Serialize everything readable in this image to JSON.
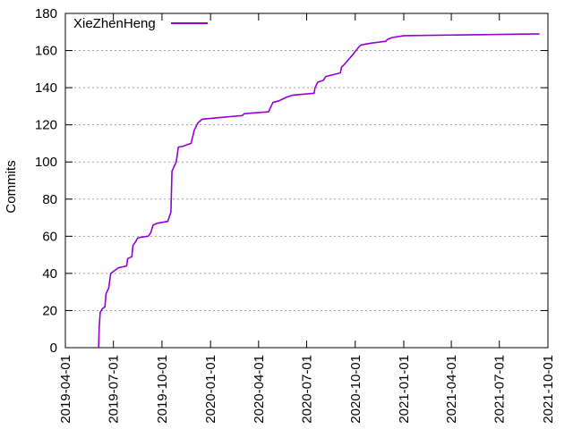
{
  "chart_data": {
    "type": "line",
    "title": "",
    "xlabel": "",
    "ylabel": "Commits",
    "ylim": [
      0,
      180
    ],
    "yticks": [
      0,
      20,
      40,
      60,
      80,
      100,
      120,
      140,
      160,
      180
    ],
    "xlim": [
      "2019-04-01",
      "2021-10-01"
    ],
    "xticks": [
      "2019-04-01",
      "2019-07-01",
      "2019-10-01",
      "2020-01-01",
      "2020-04-01",
      "2020-07-01",
      "2020-10-01",
      "2021-01-01",
      "2021-04-01",
      "2021-07-01",
      "2021-10-01"
    ],
    "grid": "horizontal-dotted",
    "legend": "top-left",
    "series": [
      {
        "name": "XieZhenHeng",
        "color": "#9400d3",
        "points": [
          [
            "2019-06-03",
            0
          ],
          [
            "2019-06-04",
            10
          ],
          [
            "2019-06-06",
            19
          ],
          [
            "2019-06-10",
            21
          ],
          [
            "2019-06-15",
            22
          ],
          [
            "2019-06-17",
            29
          ],
          [
            "2019-06-22",
            32
          ],
          [
            "2019-06-24",
            36
          ],
          [
            "2019-06-26",
            40
          ],
          [
            "2019-07-01",
            41
          ],
          [
            "2019-07-10",
            43
          ],
          [
            "2019-07-26",
            44
          ],
          [
            "2019-07-28",
            48
          ],
          [
            "2019-08-05",
            49
          ],
          [
            "2019-08-07",
            55
          ],
          [
            "2019-08-12",
            57
          ],
          [
            "2019-08-16",
            59
          ],
          [
            "2019-08-22",
            59.5
          ],
          [
            "2019-09-05",
            60
          ],
          [
            "2019-09-10",
            62
          ],
          [
            "2019-09-14",
            66
          ],
          [
            "2019-09-22",
            67
          ],
          [
            "2019-10-12",
            68
          ],
          [
            "2019-10-18",
            73
          ],
          [
            "2019-10-20",
            95
          ],
          [
            "2019-10-28",
            100
          ],
          [
            "2019-11-01",
            108
          ],
          [
            "2019-11-10",
            108.5
          ],
          [
            "2019-11-15",
            109
          ],
          [
            "2019-11-25",
            110
          ],
          [
            "2019-12-01",
            117
          ],
          [
            "2019-12-08",
            121
          ],
          [
            "2019-12-16",
            123
          ],
          [
            "2020-01-20",
            124
          ],
          [
            "2020-03-01",
            125
          ],
          [
            "2020-03-05",
            126
          ],
          [
            "2020-04-20",
            127
          ],
          [
            "2020-04-28",
            132
          ],
          [
            "2020-05-10",
            133
          ],
          [
            "2020-05-25",
            135
          ],
          [
            "2020-06-05",
            136
          ],
          [
            "2020-07-15",
            137
          ],
          [
            "2020-07-17",
            140
          ],
          [
            "2020-07-22",
            143
          ],
          [
            "2020-08-02",
            144
          ],
          [
            "2020-08-06",
            146
          ],
          [
            "2020-08-20",
            147
          ],
          [
            "2020-09-03",
            148
          ],
          [
            "2020-09-05",
            151
          ],
          [
            "2020-09-12",
            153
          ],
          [
            "2020-09-18",
            155
          ],
          [
            "2020-09-27",
            158
          ],
          [
            "2020-10-08",
            162
          ],
          [
            "2020-10-12",
            163
          ],
          [
            "2020-11-01",
            164
          ],
          [
            "2020-11-28",
            165
          ],
          [
            "2020-12-01",
            166
          ],
          [
            "2020-12-10",
            167
          ],
          [
            "2021-01-01",
            168
          ],
          [
            "2021-09-15",
            169
          ]
        ]
      }
    ]
  }
}
